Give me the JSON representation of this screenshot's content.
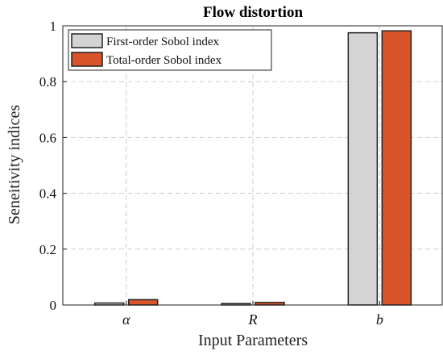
{
  "chart_data": {
    "type": "bar",
    "title": "Flow distortion",
    "xlabel": "Input Parameters",
    "ylabel": "Seneitivity indices",
    "categories": [
      "α",
      "R",
      "b"
    ],
    "series": [
      {
        "name": "First-order Sobol index",
        "values": [
          0.007,
          0.005,
          0.975
        ],
        "color": "#d4d4d4"
      },
      {
        "name": "Total-order Sobol index",
        "values": [
          0.019,
          0.009,
          0.982
        ],
        "color": "#d9542b"
      }
    ],
    "ylim": [
      0,
      1
    ],
    "yticks": [
      0,
      0.2,
      0.4,
      0.6,
      0.8,
      1
    ],
    "ytick_labels": [
      "0",
      "0.2",
      "0.4",
      "0.6",
      "0.8",
      "1"
    ],
    "grid": true,
    "legend_position": "top-left"
  }
}
